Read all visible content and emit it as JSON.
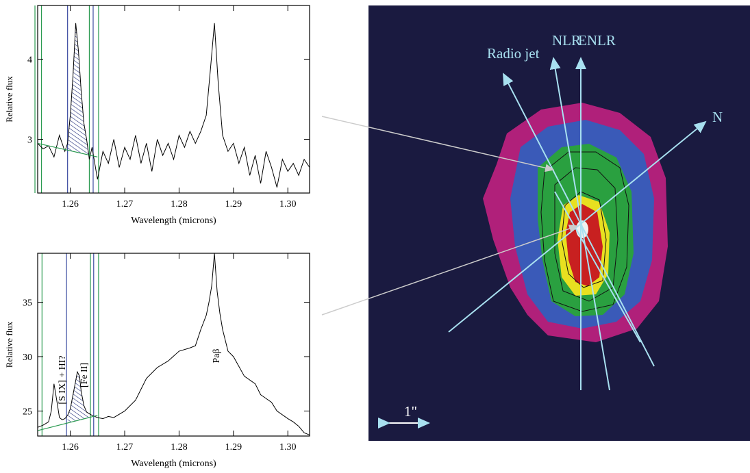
{
  "chart_data": [
    {
      "type": "line",
      "x_label": "Wavelength (microns)",
      "y_label": "Relative flux",
      "x": [
        1.254,
        1.255,
        1.256,
        1.257,
        1.258,
        1.259,
        1.2595,
        1.26,
        1.2605,
        1.261,
        1.2615,
        1.262,
        1.2625,
        1.263,
        1.2635,
        1.264,
        1.265,
        1.266,
        1.267,
        1.268,
        1.269,
        1.27,
        1.271,
        1.272,
        1.273,
        1.274,
        1.275,
        1.276,
        1.277,
        1.278,
        1.279,
        1.28,
        1.281,
        1.282,
        1.283,
        1.284,
        1.285,
        1.2858,
        1.2865,
        1.2872,
        1.288,
        1.289,
        1.29,
        1.291,
        1.292,
        1.293,
        1.294,
        1.295,
        1.296,
        1.297,
        1.298,
        1.299,
        1.3,
        1.301,
        1.302,
        1.303,
        1.304
      ],
      "series": [
        {
          "color": "#000000",
          "values": [
            2.95,
            2.88,
            2.92,
            2.78,
            3.05,
            2.85,
            2.95,
            3.3,
            3.8,
            4.45,
            4.1,
            3.6,
            3.2,
            3.0,
            2.75,
            2.9,
            2.5,
            2.85,
            2.7,
            3.0,
            2.65,
            2.9,
            2.75,
            3.05,
            2.7,
            2.95,
            2.6,
            3.0,
            2.8,
            2.95,
            2.75,
            3.05,
            2.9,
            3.1,
            2.95,
            3.1,
            3.3,
            3.9,
            4.45,
            3.7,
            3.05,
            2.85,
            2.95,
            2.7,
            2.9,
            2.55,
            2.8,
            2.45,
            2.85,
            2.65,
            2.4,
            2.75,
            2.6,
            2.7,
            2.55,
            2.75,
            2.65
          ]
        }
      ],
      "xlim": [
        1.254,
        1.304
      ],
      "ylim": [
        2.33,
        4.67
      ],
      "xticks": [
        1.26,
        1.27,
        1.28,
        1.29,
        {
          "value": 1.3,
          "label": "1.30"
        }
      ],
      "yticks": [
        3,
        4
      ],
      "vlines": [
        {
          "x": 1.2535,
          "color": "#2a9a50"
        },
        {
          "x": 1.2547,
          "color": "#2a9a50"
        },
        {
          "x": 1.2595,
          "color": "#3a4aa0"
        },
        {
          "x": 1.2635,
          "color": "#2a9a50"
        },
        {
          "x": 1.2642,
          "color": "#3a4aa0"
        },
        {
          "x": 1.2652,
          "color": "#2a9a50"
        }
      ],
      "continuum": {
        "x": [
          1.254,
          1.265
        ],
        "y": [
          2.95,
          2.78
        ],
        "color": "#2a9a50"
      },
      "hatch": [
        1.2595,
        1.2635
      ]
    },
    {
      "type": "line",
      "x_label": "Wavelength (microns)",
      "y_label": "Relative flux",
      "x": [
        1.254,
        1.255,
        1.256,
        1.2565,
        1.257,
        1.2575,
        1.258,
        1.2585,
        1.259,
        1.2595,
        1.26,
        1.2605,
        1.261,
        1.2613,
        1.2617,
        1.262,
        1.2625,
        1.263,
        1.264,
        1.265,
        1.266,
        1.267,
        1.268,
        1.27,
        1.272,
        1.273,
        1.274,
        1.276,
        1.278,
        1.28,
        1.282,
        1.283,
        1.284,
        1.285,
        1.2855,
        1.286,
        1.2865,
        1.287,
        1.2875,
        1.288,
        1.289,
        1.29,
        1.292,
        1.294,
        1.295,
        1.297,
        1.298,
        1.3,
        1.301,
        1.302,
        1.303,
        1.304
      ],
      "series": [
        {
          "color": "#000000",
          "values": [
            23.5,
            23.7,
            24.0,
            25.0,
            27.5,
            26.0,
            24.4,
            24.2,
            24.3,
            24.6,
            25.2,
            26.5,
            27.8,
            28.6,
            28.2,
            26.8,
            25.5,
            24.9,
            24.6,
            24.4,
            24.3,
            24.5,
            24.4,
            25.0,
            26.0,
            27.0,
            28.0,
            29.0,
            29.6,
            30.5,
            30.8,
            31.0,
            32.5,
            33.8,
            35.0,
            36.5,
            39.5,
            36.0,
            34.0,
            32.5,
            30.5,
            30.0,
            28.2,
            27.5,
            26.5,
            25.8,
            25.0,
            24.3,
            24.0,
            23.6,
            23.0,
            22.8
          ]
        }
      ],
      "xlim": [
        1.254,
        1.304
      ],
      "ylim": [
        22.7,
        39.5
      ],
      "xticks": [
        1.26,
        1.27,
        1.28,
        1.29,
        {
          "value": 1.3,
          "label": "1.30"
        }
      ],
      "yticks": [
        25,
        30,
        35
      ],
      "vlines": [
        {
          "x": 1.2548,
          "color": "#2a9a50"
        },
        {
          "x": 1.2593,
          "color": "#3a4aa0"
        },
        {
          "x": 1.2637,
          "color": "#2a9a50"
        },
        {
          "x": 1.2643,
          "color": "#3a4aa0"
        },
        {
          "x": 1.2652,
          "color": "#2a9a50"
        }
      ],
      "continuum": {
        "x": [
          1.254,
          1.265
        ],
        "y": [
          23.2,
          24.6
        ],
        "color": "#2a9a50"
      },
      "hatch": [
        1.2595,
        1.2637
      ],
      "annotations": [
        "[S IX] + HI?",
        "[Fe II]",
        "Paβ"
      ]
    }
  ],
  "image_panel": {
    "radio_jet": "Radio jet",
    "nlr": "NLR",
    "enlr": "ENLR",
    "north": "N",
    "scale": "1\""
  }
}
